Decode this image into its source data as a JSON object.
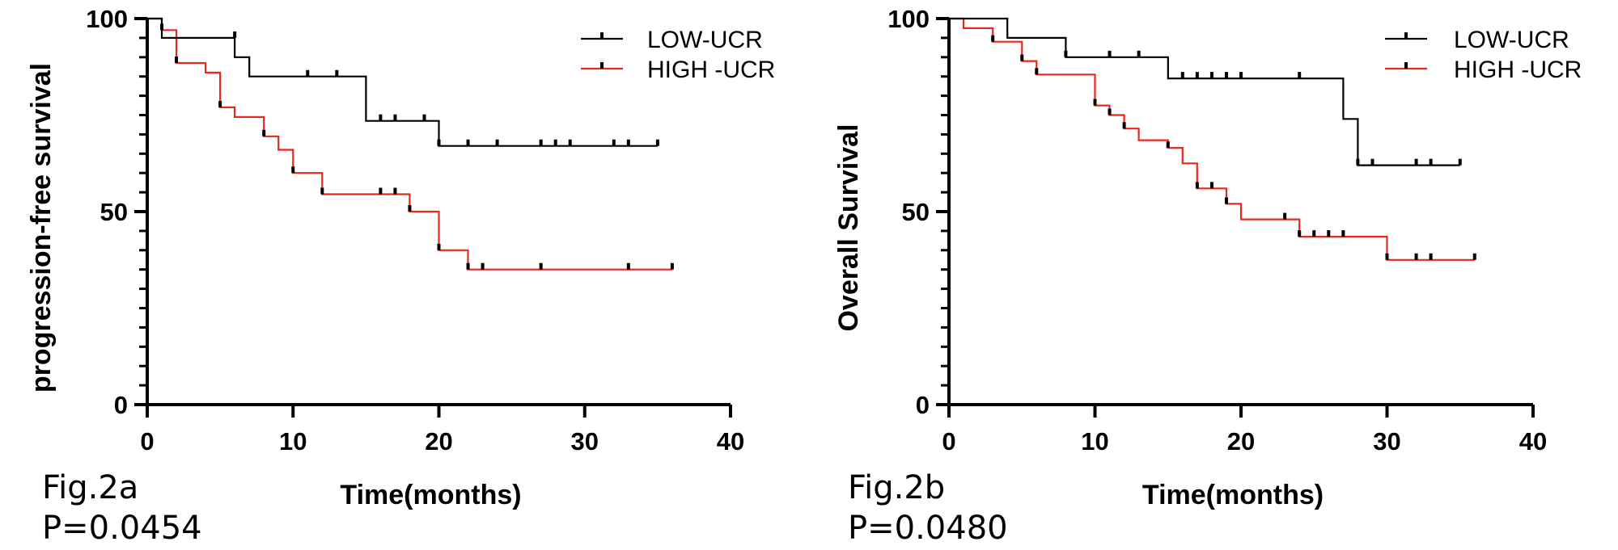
{
  "figures": [
    {
      "fig_label": "Fig.2a",
      "p_value": "P=0.0454"
    },
    {
      "fig_label": "Fig.2b",
      "p_value": "P=0.0480"
    }
  ],
  "chart_data": [
    {
      "type": "line",
      "subtype": "kaplan-meier",
      "ylabel": "progression-free survival",
      "xlabel": "Time(months)",
      "xlim": [
        0,
        40
      ],
      "ylim": [
        0,
        100
      ],
      "xticks": [
        0,
        10,
        20,
        30,
        40
      ],
      "yticks": [
        0,
        50,
        100
      ],
      "legend_position": "top-right",
      "grid": false,
      "series": [
        {
          "name": "LOW-UCR",
          "color": "#000000",
          "steps": [
            [
              0,
              100
            ],
            [
              1,
              100
            ],
            [
              1,
              95
            ],
            [
              6,
              95
            ],
            [
              6,
              90
            ],
            [
              7,
              90
            ],
            [
              7,
              85
            ],
            [
              15,
              85
            ],
            [
              15,
              73.5
            ],
            [
              20,
              73.5
            ],
            [
              20,
              67
            ],
            [
              35,
              67
            ]
          ],
          "censored": [
            [
              6,
              95
            ],
            [
              11,
              85
            ],
            [
              13,
              85
            ],
            [
              16,
              73.5
            ],
            [
              17,
              73.5
            ],
            [
              19,
              73.5
            ],
            [
              20,
              67
            ],
            [
              22,
              67
            ],
            [
              24,
              67
            ],
            [
              27,
              67
            ],
            [
              28,
              67
            ],
            [
              29,
              67
            ],
            [
              32,
              67
            ],
            [
              33,
              67
            ],
            [
              35,
              67
            ]
          ]
        },
        {
          "name": "HIGH -UCR",
          "color": "#e8281e",
          "steps": [
            [
              0,
              100
            ],
            [
              1,
              100
            ],
            [
              1,
              97
            ],
            [
              2,
              97
            ],
            [
              2,
              88.5
            ],
            [
              4,
              88.5
            ],
            [
              4,
              86
            ],
            [
              5,
              86
            ],
            [
              5,
              77
            ],
            [
              6,
              77
            ],
            [
              6,
              74.5
            ],
            [
              8,
              74.5
            ],
            [
              8,
              69.5
            ],
            [
              9,
              69.5
            ],
            [
              9,
              66
            ],
            [
              10,
              66
            ],
            [
              10,
              60
            ],
            [
              12,
              60
            ],
            [
              12,
              54.5
            ],
            [
              18,
              54.5
            ],
            [
              18,
              50
            ],
            [
              20,
              50
            ],
            [
              20,
              40
            ],
            [
              22,
              40
            ],
            [
              22,
              35
            ],
            [
              36,
              35
            ]
          ],
          "censored": [
            [
              1,
              97
            ],
            [
              2,
              88.5
            ],
            [
              5,
              77
            ],
            [
              8,
              69.5
            ],
            [
              10,
              60
            ],
            [
              12,
              54.5
            ],
            [
              16,
              54.5
            ],
            [
              17,
              54.5
            ],
            [
              18,
              50
            ],
            [
              20,
              40
            ],
            [
              22,
              35
            ],
            [
              23,
              35
            ],
            [
              27,
              35
            ],
            [
              33,
              35
            ],
            [
              36,
              35
            ]
          ]
        }
      ]
    },
    {
      "type": "line",
      "subtype": "kaplan-meier",
      "ylabel": "Overall Survival",
      "xlabel": "Time(months)",
      "xlim": [
        0,
        40
      ],
      "ylim": [
        0,
        100
      ],
      "xticks": [
        0,
        10,
        20,
        30,
        40
      ],
      "yticks": [
        0,
        50,
        100
      ],
      "legend_position": "top-right",
      "grid": false,
      "series": [
        {
          "name": "LOW-UCR",
          "color": "#000000",
          "steps": [
            [
              0,
              100
            ],
            [
              4,
              100
            ],
            [
              4,
              95
            ],
            [
              8,
              95
            ],
            [
              8,
              90
            ],
            [
              15,
              90
            ],
            [
              15,
              84.5
            ],
            [
              27,
              84.5
            ],
            [
              27,
              74
            ],
            [
              28,
              74
            ],
            [
              28,
              62
            ],
            [
              35,
              62
            ]
          ],
          "censored": [
            [
              8,
              90
            ],
            [
              11,
              90
            ],
            [
              13,
              90
            ],
            [
              16,
              84.5
            ],
            [
              17,
              84.5
            ],
            [
              18,
              84.5
            ],
            [
              19,
              84.5
            ],
            [
              20,
              84.5
            ],
            [
              24,
              84.5
            ],
            [
              28,
              62
            ],
            [
              29,
              62
            ],
            [
              32,
              62
            ],
            [
              33,
              62
            ],
            [
              35,
              62
            ]
          ]
        },
        {
          "name": "HIGH -UCR",
          "color": "#e8281e",
          "steps": [
            [
              0,
              100
            ],
            [
              1,
              100
            ],
            [
              1,
              97.5
            ],
            [
              3,
              97.5
            ],
            [
              3,
              94
            ],
            [
              5,
              94
            ],
            [
              5,
              89
            ],
            [
              6,
              89
            ],
            [
              6,
              85.5
            ],
            [
              10,
              85.5
            ],
            [
              10,
              77.5
            ],
            [
              11,
              77.5
            ],
            [
              11,
              75
            ],
            [
              12,
              75
            ],
            [
              12,
              71.5
            ],
            [
              13,
              71.5
            ],
            [
              13,
              68.5
            ],
            [
              15,
              68.5
            ],
            [
              15,
              66.5
            ],
            [
              16,
              66.5
            ],
            [
              16,
              62.5
            ],
            [
              17,
              62.5
            ],
            [
              17,
              56
            ],
            [
              19,
              56
            ],
            [
              19,
              52
            ],
            [
              20,
              52
            ],
            [
              20,
              48
            ],
            [
              24,
              48
            ],
            [
              24,
              43.5
            ],
            [
              30,
              43.5
            ],
            [
              30,
              37.5
            ],
            [
              36,
              37.5
            ]
          ],
          "censored": [
            [
              3,
              94
            ],
            [
              5,
              89
            ],
            [
              6,
              85.5
            ],
            [
              10,
              77.5
            ],
            [
              11,
              75
            ],
            [
              12,
              71.5
            ],
            [
              15,
              66.5
            ],
            [
              17,
              56
            ],
            [
              18,
              56
            ],
            [
              19,
              52
            ],
            [
              23,
              48
            ],
            [
              24,
              43.5
            ],
            [
              25,
              43.5
            ],
            [
              26,
              43.5
            ],
            [
              27,
              43.5
            ],
            [
              30,
              37.5
            ],
            [
              32,
              37.5
            ],
            [
              33,
              37.5
            ],
            [
              36,
              37.5
            ]
          ]
        }
      ]
    }
  ]
}
